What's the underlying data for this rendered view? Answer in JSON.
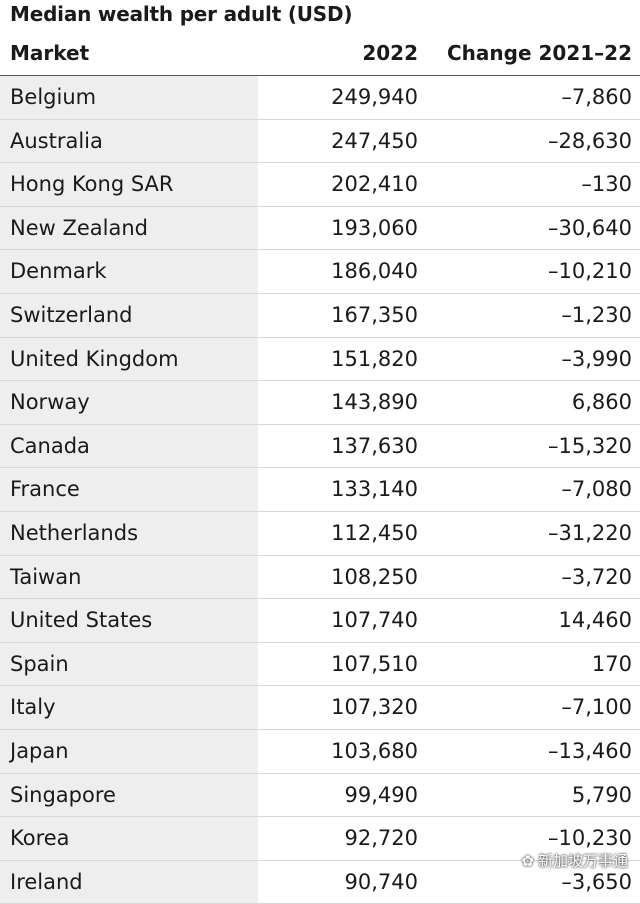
{
  "title": "Median wealth per adult (USD)",
  "columns": {
    "market": "Market",
    "year": "2022",
    "change": "Change 2021–22"
  },
  "rows": [
    {
      "market": "Belgium",
      "value": "249,940",
      "change": "–7,860"
    },
    {
      "market": "Australia",
      "value": "247,450",
      "change": "–28,630"
    },
    {
      "market": "Hong Kong SAR",
      "value": "202,410",
      "change": "–130"
    },
    {
      "market": "New Zealand",
      "value": "193,060",
      "change": "–30,640"
    },
    {
      "market": "Denmark",
      "value": "186,040",
      "change": "–10,210"
    },
    {
      "market": "Switzerland",
      "value": "167,350",
      "change": "–1,230"
    },
    {
      "market": "United Kingdom",
      "value": "151,820",
      "change": "–3,990"
    },
    {
      "market": "Norway",
      "value": "143,890",
      "change": "6,860"
    },
    {
      "market": "Canada",
      "value": "137,630",
      "change": "–15,320"
    },
    {
      "market": "France",
      "value": "133,140",
      "change": "–7,080"
    },
    {
      "market": "Netherlands",
      "value": "112,450",
      "change": "–31,220"
    },
    {
      "market": "Taiwan",
      "value": "108,250",
      "change": "–3,720"
    },
    {
      "market": "United States",
      "value": "107,740",
      "change": "14,460"
    },
    {
      "market": "Spain",
      "value": "107,510",
      "change": "170"
    },
    {
      "market": "Italy",
      "value": "107,320",
      "change": "–7,100"
    },
    {
      "market": "Japan",
      "value": "103,680",
      "change": "–13,460"
    },
    {
      "market": "Singapore",
      "value": "99,490",
      "change": "5,790"
    },
    {
      "market": "Korea",
      "value": "92,720",
      "change": "–10,230"
    },
    {
      "market": "Ireland",
      "value": "90,740",
      "change": "–3,650"
    }
  ],
  "watermark": {
    "icon": "wechat-icon",
    "text": "新加坡万事通"
  },
  "colors": {
    "market_column_bg": "#eeeeee",
    "row_divider": "#d8d8d8",
    "text": "#1a1a1a"
  }
}
